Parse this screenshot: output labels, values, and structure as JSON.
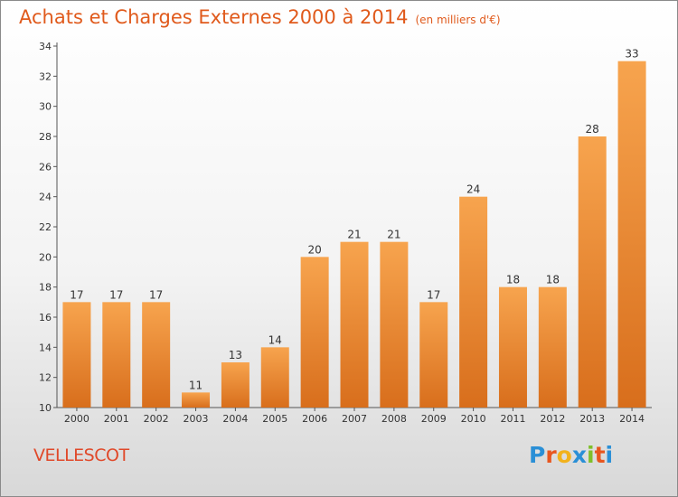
{
  "header": {
    "title": "Achats et Charges Externes 2000 à 2014",
    "unit": "(en milliers d'€)"
  },
  "footer": {
    "commune": "VELLESCOT",
    "logo_letters": [
      "P",
      "r",
      "o",
      "x",
      "i",
      "t",
      "i"
    ]
  },
  "colors": {
    "bar_top": "#f7a44e",
    "bar_bottom": "#d86e1c",
    "title": "#e05a1c",
    "commune": "#e0492a",
    "logo": [
      "#2a8fd6",
      "#e8561f",
      "#f2b21c",
      "#2a8fd6",
      "#7fbf2a",
      "#e8561f",
      "#2a8fd6"
    ]
  },
  "chart_data": {
    "type": "bar",
    "title": "Achats et Charges Externes 2000 à 2014",
    "subtitle": "(en milliers d'€)",
    "categories": [
      "2000",
      "2001",
      "2002",
      "2003",
      "2004",
      "2005",
      "2006",
      "2007",
      "2008",
      "2009",
      "2010",
      "2011",
      "2012",
      "2013",
      "2014"
    ],
    "values": [
      17,
      17,
      17,
      11,
      13,
      14,
      20,
      21,
      21,
      17,
      24,
      18,
      18,
      28,
      33
    ],
    "ylim": [
      10,
      34
    ],
    "yticks": [
      10,
      12,
      14,
      16,
      18,
      20,
      22,
      24,
      26,
      28,
      30,
      32,
      34
    ],
    "grid": false
  }
}
